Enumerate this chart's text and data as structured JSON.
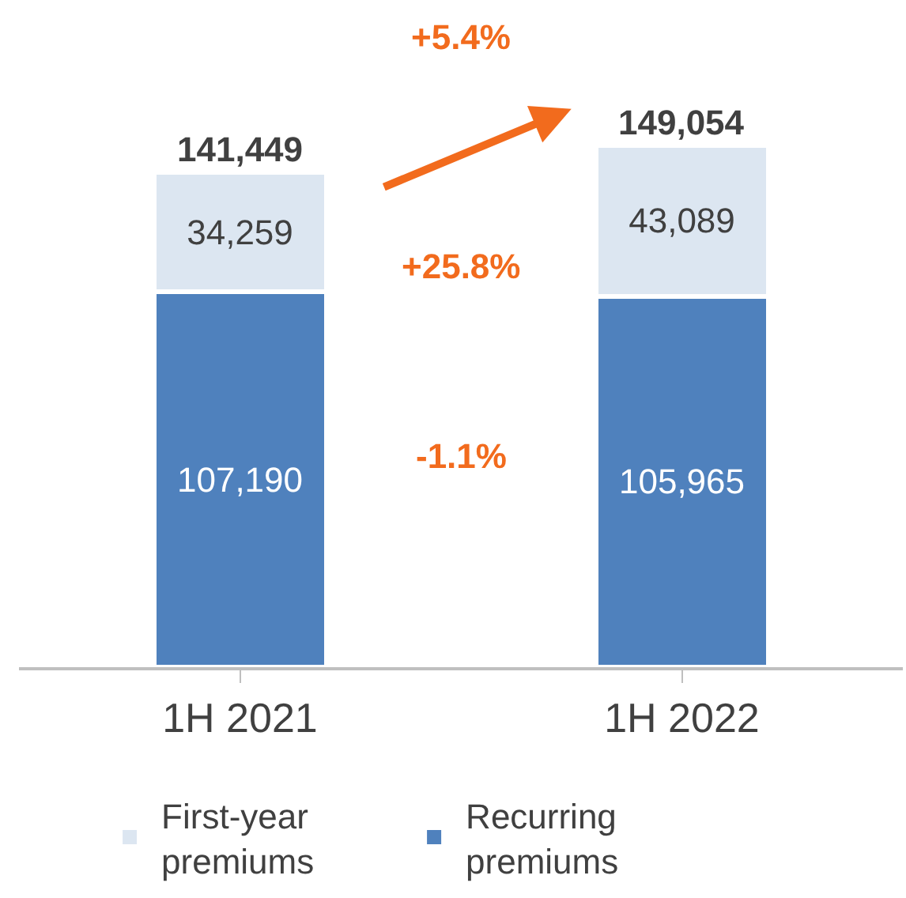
{
  "chart_data": {
    "type": "bar",
    "stacked": true,
    "categories": [
      "1H 2021",
      "1H 2022"
    ],
    "series": [
      {
        "name": "Recurring premiums",
        "color": "#4f81bd",
        "values": [
          107190,
          105965
        ],
        "value_labels": [
          "107,190",
          "105,965"
        ]
      },
      {
        "name": "First-year premiums",
        "color": "#dce6f1",
        "values": [
          34259,
          43089
        ],
        "value_labels": [
          "34,259",
          "43,089"
        ]
      }
    ],
    "totals": [
      "141,449",
      "149,054"
    ],
    "annotations": [
      {
        "text": "+5.4%"
      },
      "+25.8%",
      "-1.1%"
    ],
    "legend": "bottom",
    "tick_labels": "x"
  }
}
